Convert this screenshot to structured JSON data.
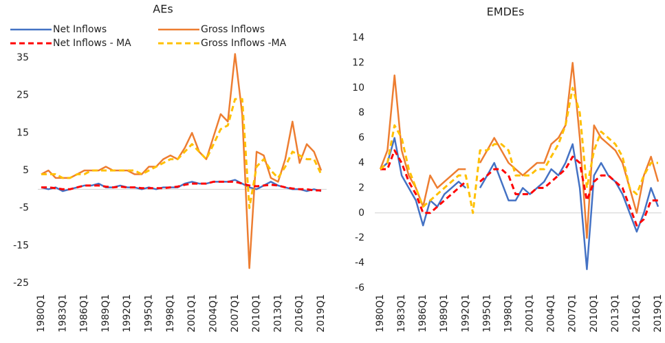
{
  "chart_data": [
    {
      "type": "line",
      "title": "AEs",
      "categories": [
        "1980Q1",
        null,
        null,
        "1983Q1",
        null,
        null,
        "1986Q1",
        null,
        null,
        "1989Q1",
        null,
        null,
        "1992Q1",
        null,
        null,
        "1995Q1",
        null,
        null,
        "1998Q1",
        null,
        null,
        "2001Q1",
        null,
        null,
        "2004Q1",
        null,
        null,
        "2007Q1",
        null,
        null,
        "2010Q1",
        null,
        null,
        "2013Q1",
        null,
        null,
        "2016Q1",
        null,
        null,
        "2019Q1"
      ],
      "ylim": [
        -25,
        35
      ],
      "yticks": [
        -25,
        -15,
        -5,
        5,
        15,
        25,
        35
      ],
      "series": [
        {
          "name": "Net Inflows",
          "color": "#4472c4",
          "dashed": false,
          "values": [
            0.5,
            0,
            0.5,
            -0.5,
            0,
            0.5,
            1,
            1,
            1.5,
            0.5,
            0.5,
            1,
            0.5,
            0.5,
            0,
            0.5,
            0,
            0.5,
            0.5,
            0.5,
            1.5,
            2,
            1.5,
            1.5,
            2,
            2,
            2,
            2.5,
            1.5,
            0.5,
            0,
            1,
            2,
            1,
            0.5,
            0,
            0,
            -0.5,
            0,
            -0.5
          ]
        },
        {
          "name": "Gross Inflows",
          "color": "#ed7d31",
          "dashed": false,
          "values": [
            4,
            5,
            3,
            3,
            3,
            4,
            5,
            5,
            5,
            6,
            5,
            5,
            5,
            4,
            4,
            6,
            6,
            8,
            9,
            8,
            11,
            15,
            10,
            8,
            14,
            20,
            18,
            36,
            20,
            -21,
            10,
            9,
            3,
            2,
            8,
            18,
            7,
            12,
            10,
            5
          ]
        },
        {
          "name": "Net Inflows - MA",
          "color": "#ff0000",
          "dashed": true,
          "values": [
            0.5,
            0.5,
            0.3,
            0,
            0,
            0.5,
            1,
            1,
            1,
            0.7,
            0.5,
            0.7,
            0.5,
            0.5,
            0.3,
            0.3,
            0.3,
            0.3,
            0.5,
            0.7,
            1.2,
            1.5,
            1.5,
            1.5,
            2,
            2,
            2,
            2,
            1.5,
            1,
            0.8,
            1,
            1.2,
            1,
            0.5,
            0.2,
            0,
            0,
            -0.3,
            -0.3
          ]
        },
        {
          "name": "Gross Inflows -MA",
          "color": "#ffc000",
          "dashed": true,
          "values": [
            4,
            4,
            4,
            3,
            3,
            4,
            4,
            5,
            5,
            5,
            5,
            5,
            5,
            5,
            4,
            5,
            6,
            7,
            8,
            8,
            10,
            12,
            10,
            8,
            12,
            16,
            17,
            24,
            24,
            -5,
            6,
            8,
            5,
            3,
            6,
            10,
            9,
            8,
            8,
            4
          ]
        }
      ]
    },
    {
      "type": "line",
      "title": "EMDEs",
      "categories": [
        "1980Q1",
        null,
        null,
        "1983Q1",
        null,
        null,
        "1986Q1",
        null,
        null,
        "1989Q1",
        null,
        null,
        "1992Q1",
        null,
        null,
        "1995Q1",
        null,
        null,
        "1998Q1",
        null,
        null,
        "2001Q1",
        null,
        null,
        "2004Q1",
        null,
        null,
        "2007Q1",
        null,
        null,
        "2010Q1",
        null,
        null,
        "2013Q1",
        null,
        null,
        "2016Q1",
        null,
        null,
        "2019Q1"
      ],
      "ylim": [
        -6,
        14
      ],
      "yticks": [
        -6,
        -4,
        -2,
        0,
        2,
        4,
        6,
        8,
        10,
        12,
        14
      ],
      "series": [
        {
          "color": "#4472c4",
          "dashed": false,
          "values": [
            3.5,
            4,
            6,
            3,
            2,
            1,
            -1,
            1,
            0.5,
            1.5,
            2,
            2.5,
            2,
            null,
            2,
            3,
            4,
            2.5,
            1,
            1,
            2,
            1.5,
            2,
            2.5,
            3.5,
            3,
            4,
            5.5,
            2,
            -4.5,
            3,
            4,
            3,
            2.5,
            1.5,
            0,
            -1.5,
            0,
            2,
            0.5
          ]
        },
        {
          "color": "#ed7d31",
          "dashed": false,
          "values": [
            3.5,
            5,
            11,
            5,
            3,
            2,
            0.5,
            3,
            2,
            2.5,
            3,
            3.5,
            3.5,
            null,
            4,
            5,
            6,
            5,
            4,
            3.5,
            3,
            3.5,
            4,
            4,
            5.5,
            6,
            7,
            12,
            6,
            -2,
            7,
            6,
            5.5,
            5,
            4,
            2,
            0,
            3,
            4.5,
            2.5
          ]
        },
        {
          "color": "#ff0000",
          "dashed": true,
          "values": [
            3.5,
            3.5,
            5,
            4,
            2.5,
            1.5,
            0,
            0,
            0.5,
            1,
            1.5,
            2,
            2.5,
            null,
            2.5,
            3,
            3.5,
            3.5,
            3,
            1.5,
            1.5,
            1.5,
            2,
            2,
            2.5,
            3,
            3.5,
            4.5,
            4,
            1,
            2.5,
            3,
            3,
            2.5,
            2,
            0.5,
            -1,
            -0.5,
            1,
            1
          ]
        },
        {
          "color": "#ffc000",
          "dashed": true,
          "values": [
            3.5,
            4,
            7,
            6,
            3.5,
            2,
            0.5,
            1,
            1.5,
            2,
            2.5,
            3,
            3,
            0,
            5,
            5,
            5.5,
            5.5,
            5,
            3,
            3,
            3,
            3.5,
            3.5,
            4.5,
            5.5,
            7,
            10,
            8,
            2,
            5,
            6.5,
            6,
            5.5,
            4.5,
            2,
            1.5,
            3,
            4,
            4
          ]
        }
      ]
    }
  ]
}
